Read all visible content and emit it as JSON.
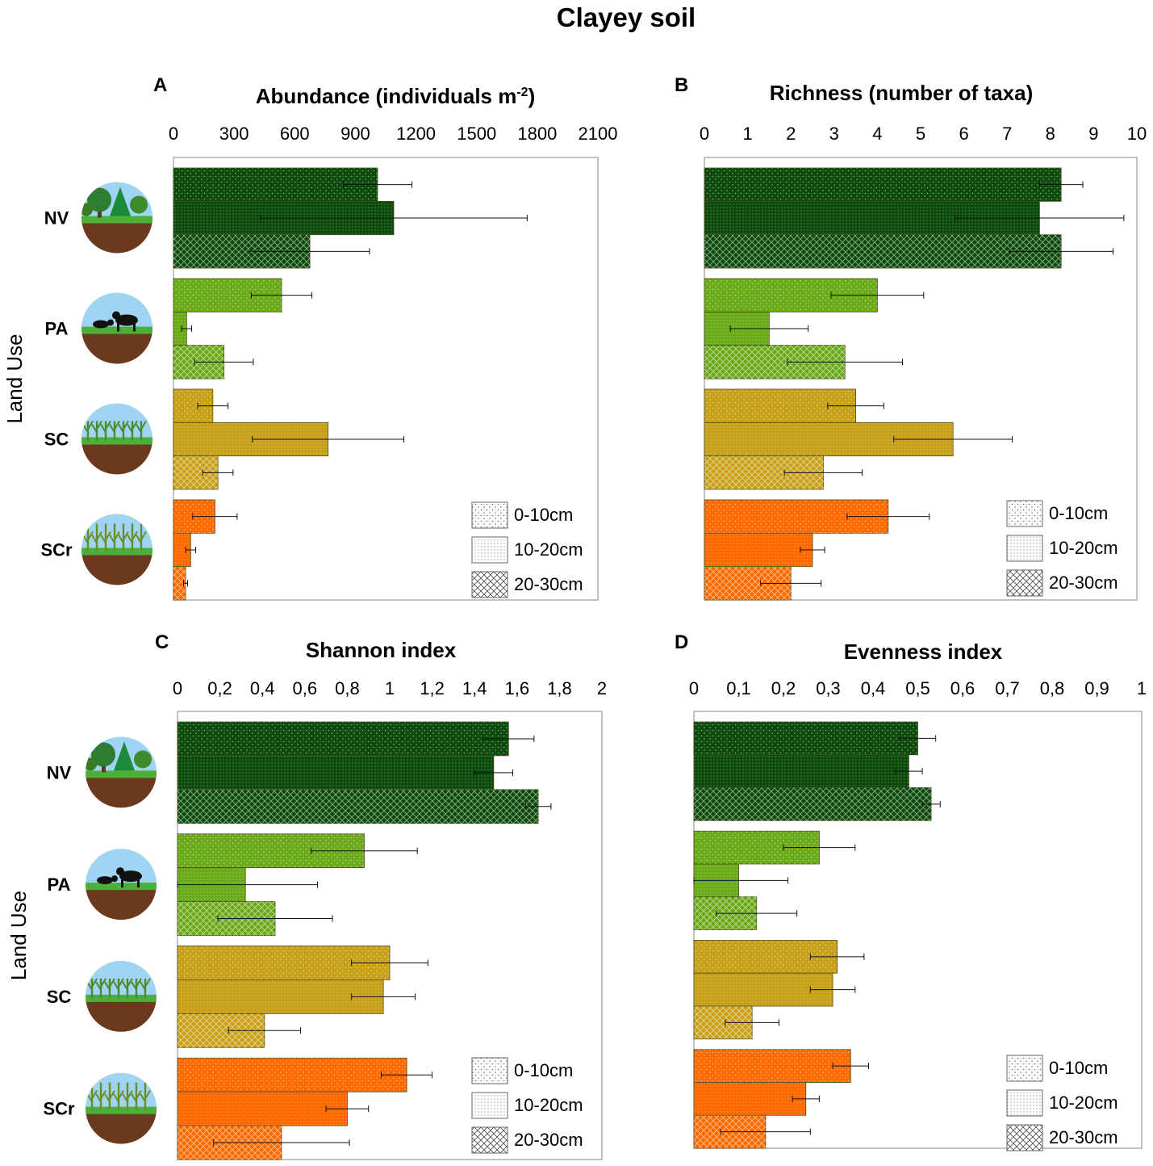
{
  "figure_title": "Clayey soil",
  "colors": {
    "NV": "#0c4a0c",
    "PA": "#6aaa18",
    "SC": "#c8a018",
    "SCr": "#ff6a00"
  },
  "chart_data": [
    {
      "panel": "A",
      "type": "bar",
      "orientation": "horizontal",
      "title": "Abundance (individuals m",
      "title_sup": "-2",
      "title_end": ")",
      "ylabel": "Land Use",
      "xlim": [
        0,
        2100
      ],
      "ticks": [
        "0",
        "300",
        "600",
        "900",
        "1200",
        "1500",
        "1800",
        "2100"
      ],
      "tick_values": [
        0,
        300,
        600,
        900,
        1200,
        1500,
        1800,
        2100
      ],
      "categories": [
        "NV",
        "PA",
        "SC",
        "SCr"
      ],
      "series": [
        {
          "name": "0-10cm",
          "values": [
            1010,
            535,
            195,
            205
          ],
          "errors": [
            170,
            150,
            75,
            110
          ]
        },
        {
          "name": "10-20cm",
          "values": [
            1090,
            65,
            765,
            85
          ],
          "errors": [
            660,
            25,
            375,
            25
          ]
        },
        {
          "name": "20-30cm",
          "values": [
            675,
            250,
            220,
            60
          ],
          "errors": [
            295,
            145,
            75,
            10
          ]
        }
      ]
    },
    {
      "panel": "B",
      "type": "bar",
      "orientation": "horizontal",
      "title": "Richness (number of taxa)",
      "title_sup": "",
      "title_end": "",
      "ylabel": "",
      "xlim": [
        0,
        10
      ],
      "ticks": [
        "0",
        "1",
        "2",
        "3",
        "4",
        "5",
        "6",
        "7",
        "8",
        "9",
        "10"
      ],
      "tick_values": [
        0,
        1,
        2,
        3,
        4,
        5,
        6,
        7,
        8,
        9,
        10
      ],
      "categories": [
        "NV",
        "PA",
        "SC",
        "SCr"
      ],
      "series": [
        {
          "name": "0-10cm",
          "values": [
            8.25,
            4.0,
            3.5,
            4.25
          ],
          "errors": [
            0.5,
            1.07,
            0.65,
            0.95
          ]
        },
        {
          "name": "10-20cm",
          "values": [
            7.75,
            1.5,
            5.75,
            2.5
          ],
          "errors": [
            1.95,
            0.9,
            1.37,
            0.28
          ]
        },
        {
          "name": "20-30cm",
          "values": [
            8.25,
            3.25,
            2.75,
            2.0
          ],
          "errors": [
            1.2,
            1.33,
            0.9,
            0.7
          ]
        }
      ]
    },
    {
      "panel": "C",
      "type": "bar",
      "orientation": "horizontal",
      "title": "Shannon index",
      "title_sup": "",
      "title_end": "",
      "ylabel": "Land Use",
      "xlim": [
        0,
        2
      ],
      "ticks": [
        "0",
        "0,2",
        "0,4",
        "0,6",
        "0,8",
        "1",
        "1,2",
        "1,4",
        "1,6",
        "1,8",
        "2"
      ],
      "tick_values": [
        0,
        0.2,
        0.4,
        0.6,
        0.8,
        1.0,
        1.2,
        1.4,
        1.6,
        1.8,
        2.0
      ],
      "categories": [
        "NV",
        "PA",
        "SC",
        "SCr"
      ],
      "series": [
        {
          "name": "0-10cm",
          "values": [
            1.56,
            0.88,
            1.0,
            1.08
          ],
          "errors": [
            0.12,
            0.25,
            0.18,
            0.12
          ]
        },
        {
          "name": "10-20cm",
          "values": [
            1.49,
            0.32,
            0.97,
            0.8
          ],
          "errors": [
            0.09,
            0.34,
            0.15,
            0.1
          ]
        },
        {
          "name": "20-30cm",
          "values": [
            1.7,
            0.46,
            0.41,
            0.49
          ],
          "errors": [
            0.06,
            0.27,
            0.17,
            0.32
          ]
        }
      ]
    },
    {
      "panel": "D",
      "type": "bar",
      "orientation": "horizontal",
      "title": "Evenness index",
      "title_sup": "",
      "title_end": "",
      "ylabel": "",
      "xlim": [
        0,
        1
      ],
      "ticks": [
        "0",
        "0,1",
        "0,2",
        "0,3",
        "0,4",
        "0,5",
        "0,6",
        "0,7",
        "0,8",
        "0,9",
        "1"
      ],
      "tick_values": [
        0,
        0.1,
        0.2,
        0.3,
        0.4,
        0.5,
        0.6,
        0.7,
        0.8,
        0.9,
        1.0
      ],
      "categories": [
        "NV",
        "PA",
        "SC",
        "SCr"
      ],
      "series": [
        {
          "name": "0-10cm",
          "values": [
            0.5,
            0.28,
            0.32,
            0.35
          ],
          "errors": [
            0.04,
            0.08,
            0.06,
            0.04
          ]
        },
        {
          "name": "10-20cm",
          "values": [
            0.48,
            0.1,
            0.31,
            0.25
          ],
          "errors": [
            0.03,
            0.11,
            0.05,
            0.03
          ]
        },
        {
          "name": "20-30cm",
          "values": [
            0.53,
            0.14,
            0.13,
            0.16
          ],
          "errors": [
            0.02,
            0.09,
            0.06,
            0.1
          ]
        }
      ]
    }
  ]
}
